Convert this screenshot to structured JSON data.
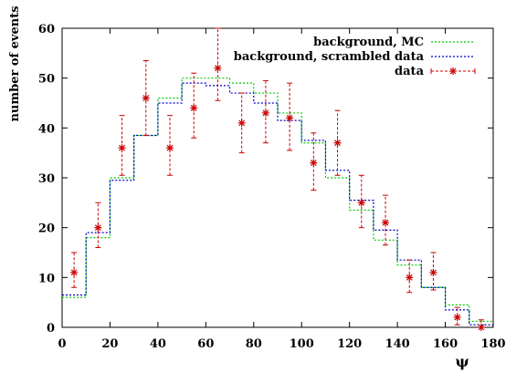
{
  "chart_data": {
    "type": "line",
    "xlabel": "ψ",
    "ylabel": "number of events",
    "xlim": [
      0,
      180
    ],
    "ylim": [
      0,
      60
    ],
    "xticks": [
      "0",
      "20",
      "40",
      "60",
      "80",
      "100",
      "120",
      "140",
      "160",
      "180"
    ],
    "yticks": [
      "0",
      "10",
      "20",
      "30",
      "40",
      "50",
      "60"
    ],
    "grid": false,
    "legend_position": "top-right",
    "series": [
      {
        "name": "background, MC",
        "style": "histogram-step",
        "color": "#00cc00",
        "bin_edges": [
          0,
          10,
          20,
          30,
          40,
          50,
          60,
          70,
          80,
          90,
          100,
          110,
          120,
          130,
          140,
          150,
          160,
          170,
          180
        ],
        "values": [
          6,
          18,
          30,
          38.5,
          46,
          50,
          50,
          49,
          47,
          43,
          37,
          30,
          23.5,
          17.5,
          12.5,
          8,
          4.5,
          1.2
        ]
      },
      {
        "name": "background, scrambled data",
        "style": "histogram-step",
        "color": "#0000cc",
        "bin_edges": [
          0,
          10,
          20,
          30,
          40,
          50,
          60,
          70,
          80,
          90,
          100,
          110,
          120,
          130,
          140,
          150,
          160,
          170,
          180
        ],
        "values": [
          6.5,
          19,
          29.5,
          38.5,
          45,
          49,
          48.5,
          47,
          45,
          41.5,
          37.5,
          31.5,
          25.5,
          19.5,
          13.5,
          8,
          3.5,
          0.5
        ]
      },
      {
        "name": "data",
        "style": "points-errorbars",
        "color": "#cc0000",
        "x": [
          5,
          15,
          25,
          35,
          45,
          55,
          65,
          75,
          85,
          95,
          105,
          115,
          125,
          135,
          145,
          155,
          165,
          175
        ],
        "y": [
          11,
          20,
          36,
          46,
          36,
          44,
          52,
          41,
          43,
          42,
          33,
          37,
          25,
          21,
          10,
          11,
          2,
          0
        ],
        "err_low": [
          8,
          16,
          30.5,
          38.5,
          30.5,
          38,
          45.5,
          35,
          37,
          35.5,
          27.5,
          30.5,
          20,
          16.5,
          7,
          7.5,
          0.5,
          0
        ],
        "err_high": [
          15,
          25,
          42.5,
          53.5,
          42.5,
          51,
          60,
          47,
          49.5,
          49,
          39,
          43.5,
          30.5,
          26.5,
          13.5,
          15,
          4,
          1.5
        ]
      }
    ]
  }
}
